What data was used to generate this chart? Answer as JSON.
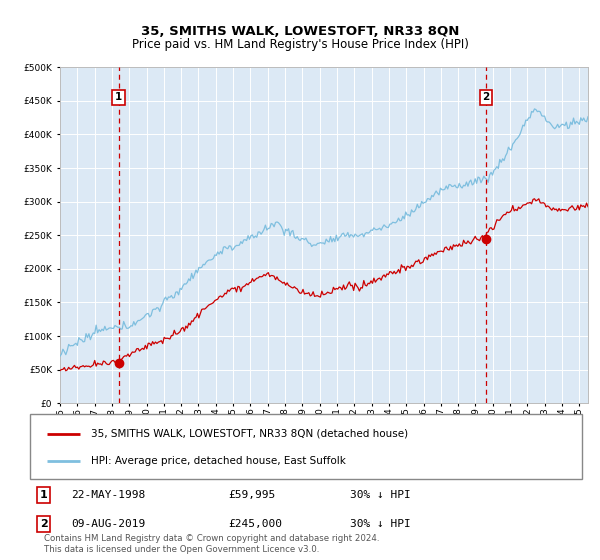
{
  "title": "35, SMITHS WALK, LOWESTOFT, NR33 8QN",
  "subtitle": "Price paid vs. HM Land Registry's House Price Index (HPI)",
  "hpi_label": "HPI: Average price, detached house, East Suffolk",
  "property_label": "35, SMITHS WALK, LOWESTOFT, NR33 8QN (detached house)",
  "copyright_text": "Contains HM Land Registry data © Crown copyright and database right 2024.\nThis data is licensed under the Open Government Licence v3.0.",
  "sale1_date_num": 1998.39,
  "sale1_price": 59995,
  "sale2_date_num": 2019.6,
  "sale2_price": 245000,
  "hpi_color": "#7fbfdf",
  "property_color": "#cc0000",
  "vline_color": "#cc0000",
  "background_color": "#dce9f5",
  "ylim": [
    0,
    500000
  ],
  "xlim_start": 1995.0,
  "xlim_end": 2025.5
}
